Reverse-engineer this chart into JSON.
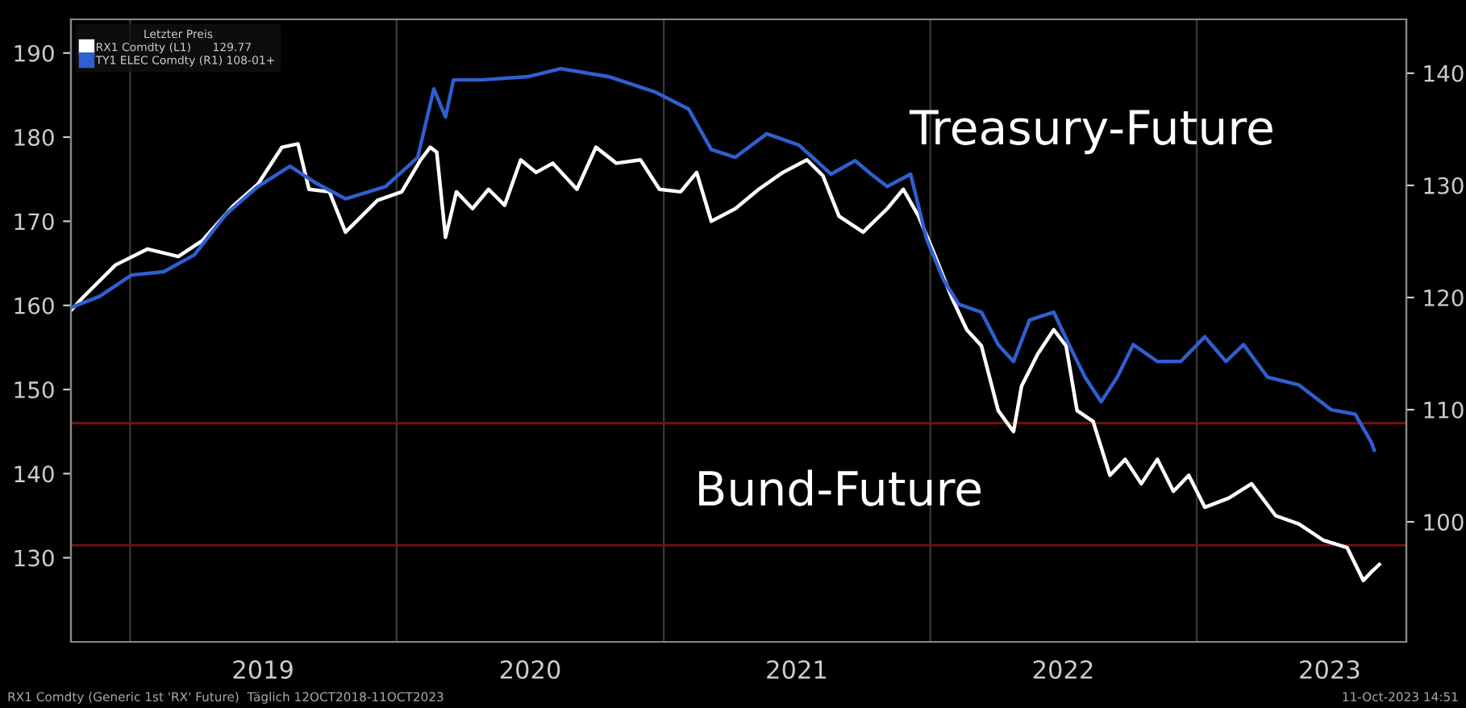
{
  "chart_data": {
    "type": "line",
    "legend_title": "Letzter Preis",
    "legend": "top left",
    "grid": "x",
    "line_style": "solid",
    "marker": "none",
    "xlim": [
      "2018-10-12",
      "2023-10-15"
    ],
    "xticks": [
      {
        "value": "2019-01-01",
        "label": null
      },
      {
        "value": "2019-07-02",
        "label": "2019"
      },
      {
        "value": "2020-01-01",
        "label": null
      },
      {
        "value": "2020-07-02",
        "label": "2020"
      },
      {
        "value": "2021-01-01",
        "label": null
      },
      {
        "value": "2021-07-02",
        "label": "2021"
      },
      {
        "value": "2022-01-01",
        "label": null
      },
      {
        "value": "2022-07-02",
        "label": "2022"
      },
      {
        "value": "2023-01-01",
        "label": null
      },
      {
        "value": "2023-07-02",
        "label": "2023"
      }
    ],
    "ylim": [
      120,
      194
    ],
    "yticks": [
      130,
      140,
      150,
      160,
      170,
      180,
      190
    ],
    "y2lim": [
      89.3,
      144.8
    ],
    "y2ticks": [
      100,
      110,
      120,
      130,
      140
    ],
    "series": [
      {
        "name": "RX1 Comdty (L1)      129.77",
        "color": "#ffffff",
        "axis": "y",
        "x": [
          "2018-10-12",
          "2018-10-29",
          "2018-12-12",
          "2019-01-25",
          "2019-03-08",
          "2019-04-10",
          "2019-05-23",
          "2019-06-25",
          "2019-07-28",
          "2019-08-19",
          "2019-09-03",
          "2019-10-01",
          "2019-10-23",
          "2019-12-06",
          "2020-01-08",
          "2020-02-03",
          "2020-02-16",
          "2020-02-25",
          "2020-03-08",
          "2020-03-23",
          "2020-04-14",
          "2020-05-06",
          "2020-05-28",
          "2020-06-19",
          "2020-07-10",
          "2020-08-02",
          "2020-09-04",
          "2020-09-30",
          "2020-10-28",
          "2020-11-30",
          "2020-12-26",
          "2021-01-24",
          "2021-02-15",
          "2021-03-07",
          "2021-04-09",
          "2021-05-11",
          "2021-06-13",
          "2021-07-16",
          "2021-08-07",
          "2021-08-29",
          "2021-10-01",
          "2021-11-03",
          "2021-11-25",
          "2021-12-16",
          "2022-01-08",
          "2022-01-30",
          "2022-02-20",
          "2022-03-12",
          "2022-04-04",
          "2022-04-25",
          "2022-05-06",
          "2022-05-28",
          "2022-06-19",
          "2022-07-06",
          "2022-07-21",
          "2022-08-12",
          "2022-09-04",
          "2022-09-25",
          "2022-10-17",
          "2022-11-08",
          "2022-11-30",
          "2022-12-21",
          "2023-01-12",
          "2023-02-14",
          "2023-03-17",
          "2023-04-19",
          "2023-05-21",
          "2023-06-23",
          "2023-07-26",
          "2023-08-17",
          "2023-08-28",
          "2023-09-08"
        ],
        "values": [
          159.4,
          161,
          164.8,
          166.7,
          165.8,
          167.7,
          171.9,
          174.4,
          178.8,
          179.2,
          173.8,
          173.5,
          168.7,
          172.5,
          173.5,
          177.3,
          178.8,
          178.2,
          168.1,
          173.5,
          171.5,
          173.8,
          171.9,
          177.3,
          175.8,
          176.9,
          173.8,
          178.8,
          176.9,
          177.3,
          173.8,
          173.5,
          175.8,
          170,
          171.5,
          173.8,
          175.8,
          177.3,
          175.4,
          170.6,
          168.7,
          171.5,
          173.8,
          170.6,
          165.8,
          161,
          157.1,
          155.2,
          147.5,
          145,
          150.4,
          154.2,
          157.1,
          155.2,
          147.5,
          146.2,
          139.8,
          141.7,
          138.8,
          141.7,
          137.9,
          139.8,
          136,
          137.1,
          138.8,
          135,
          134,
          132.1,
          131.2,
          127.3,
          128.3,
          129.2
        ]
      },
      {
        "name": "TY1 ELEC Comdty (R1) 108-01+",
        "color": "#2f5fd0",
        "axis": "y2",
        "x": [
          "2018-10-12",
          "2018-11-20",
          "2019-01-03",
          "2019-02-16",
          "2019-03-30",
          "2019-05-12",
          "2019-06-25",
          "2019-08-08",
          "2019-09-10",
          "2019-10-23",
          "2019-12-17",
          "2020-01-30",
          "2020-02-21",
          "2020-03-08",
          "2020-03-19",
          "2020-04-25",
          "2020-06-30",
          "2020-08-13",
          "2020-10-17",
          "2020-12-21",
          "2021-02-04",
          "2021-03-07",
          "2021-04-09",
          "2021-05-22",
          "2021-07-05",
          "2021-08-18",
          "2021-09-20",
          "2021-10-12",
          "2021-11-03",
          "2021-12-05",
          "2021-12-27",
          "2022-01-19",
          "2022-02-09",
          "2022-03-12",
          "2022-04-04",
          "2022-04-25",
          "2022-05-17",
          "2022-06-19",
          "2022-07-10",
          "2022-08-01",
          "2022-08-23",
          "2022-09-14",
          "2022-10-06",
          "2022-11-08",
          "2022-12-10",
          "2023-01-12",
          "2023-02-10",
          "2023-03-06",
          "2023-04-08",
          "2023-05-21",
          "2023-07-04",
          "2023-08-06",
          "2023-08-28",
          "2023-09-01"
        ],
        "values": [
          119.1,
          120.1,
          122,
          122.3,
          123.8,
          127.4,
          129.9,
          131.7,
          130.3,
          128.8,
          129.9,
          132.5,
          138.6,
          136.1,
          139.4,
          139.4,
          139.7,
          140.4,
          139.7,
          138.3,
          136.8,
          133.2,
          132.5,
          134.6,
          133.6,
          131,
          132.2,
          131,
          129.9,
          131,
          125.2,
          121.6,
          119.4,
          118.7,
          115.8,
          114.3,
          118,
          118.7,
          115.8,
          112.9,
          110.7,
          112.9,
          115.8,
          114.3,
          114.3,
          116.5,
          114.3,
          115.8,
          112.9,
          112.2,
          110,
          109.6,
          107.1,
          106.4
        ]
      }
    ],
    "ref_lines": [
      {
        "axis": "y",
        "value": 146,
        "color": "#7a1010"
      },
      {
        "axis": "y",
        "value": 131.5,
        "color": "#7a1010"
      }
    ],
    "annotations": [
      "Treasury-Future",
      "Bund-Future",
      "RX1 Comdty (Generic 1st 'RX' Future)  Täglich 12OCT2018-11OCT2023",
      "11-Oct-2023 14:51"
    ]
  }
}
